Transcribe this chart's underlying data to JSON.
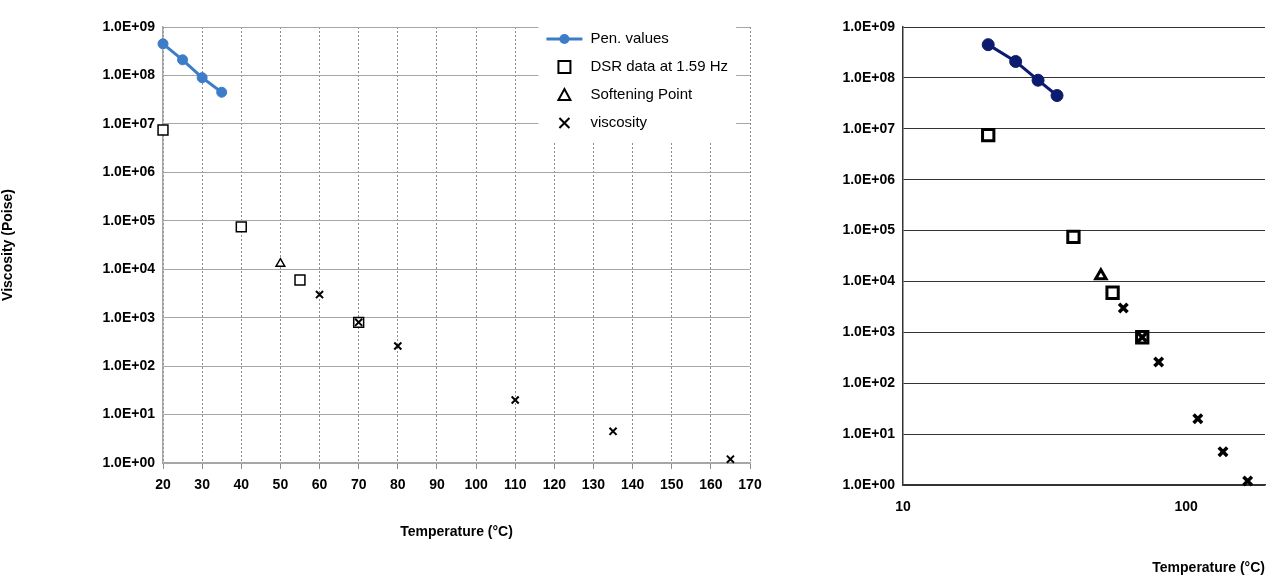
{
  "chart_data": [
    {
      "type": "scatter",
      "xlabel": "Temperature (°C)",
      "ylabel": "Viscosity (Poise)",
      "log": "y",
      "grid": true,
      "legend": "top right",
      "xlim": [
        20,
        170
      ],
      "xticks": [
        20,
        30,
        40,
        50,
        60,
        70,
        80,
        90,
        100,
        110,
        120,
        130,
        140,
        150,
        160,
        170
      ],
      "ylim": [
        1,
        1000000000
      ],
      "yticks": [
        {
          "value": 1,
          "label": "1.0E+00"
        },
        {
          "value": 10,
          "label": "1.0E+01"
        },
        {
          "value": 100,
          "label": "1.0E+02"
        },
        {
          "value": 1000,
          "label": "1.0E+03"
        },
        {
          "value": 10000,
          "label": "1.0E+04"
        },
        {
          "value": 100000,
          "label": "1.0E+05"
        },
        {
          "value": 1000000,
          "label": "1.0E+06"
        },
        {
          "value": 10000000,
          "label": "1.0E+07"
        },
        {
          "value": 100000000,
          "label": "1.0E+08"
        },
        {
          "value": 1000000000,
          "label": "1.0E+09"
        }
      ],
      "series": [
        {
          "name": "Pen. values",
          "type": "line",
          "marker": "circle",
          "color": "#3d7cc9",
          "x": [
            20,
            25,
            30,
            35
          ],
          "values": [
            450000000,
            210000000,
            90000000,
            45000000
          ]
        },
        {
          "name": "DSR data at 1.59 Hz",
          "type": "scatter",
          "marker": "square",
          "color": "#000000",
          "x": [
            20,
            40,
            55,
            70
          ],
          "values": [
            7500000,
            75000,
            6000,
            800
          ]
        },
        {
          "name": "Softening Point",
          "type": "scatter",
          "marker": "triangle",
          "color": "#000000",
          "x": [
            50
          ],
          "values": [
            13000
          ]
        },
        {
          "name": "viscosity",
          "type": "scatter",
          "marker": "cross",
          "color": "#000000",
          "x": [
            60,
            70,
            80,
            110,
            135,
            165
          ],
          "values": [
            3000,
            800,
            260,
            20,
            4.5,
            1.2
          ]
        }
      ]
    },
    {
      "type": "scatter",
      "xlabel": "Temperature (°C)",
      "log": "xy",
      "grid": "y",
      "xlim": [
        10,
        190
      ],
      "xticks": [
        10,
        100
      ],
      "ylim": [
        1,
        1000000000
      ],
      "yticks": [
        {
          "value": 1,
          "label": "1.0E+00"
        },
        {
          "value": 10,
          "label": "1.0E+01"
        },
        {
          "value": 100,
          "label": "1.0E+02"
        },
        {
          "value": 1000,
          "label": "1.0E+03"
        },
        {
          "value": 10000,
          "label": "1.0E+04"
        },
        {
          "value": 100000,
          "label": "1.0E+05"
        },
        {
          "value": 1000000,
          "label": "1.0E+06"
        },
        {
          "value": 10000000,
          "label": "1.0E+07"
        },
        {
          "value": 100000000,
          "label": "1.0E+08"
        },
        {
          "value": 1000000000,
          "label": "1.0E+09"
        }
      ],
      "series": [
        {
          "type": "line",
          "marker": "circle",
          "color": "#0d1b6e",
          "x": [
            20,
            25,
            30,
            35
          ],
          "values": [
            450000000,
            210000000,
            90000000,
            45000000
          ]
        },
        {
          "type": "scatter",
          "marker": "square",
          "color": "#000000",
          "x": [
            20,
            40,
            55,
            70
          ],
          "values": [
            7500000,
            75000,
            6000,
            800
          ]
        },
        {
          "type": "scatter",
          "marker": "triangle",
          "color": "#000000",
          "x": [
            50
          ],
          "values": [
            13000
          ]
        },
        {
          "type": "scatter",
          "marker": "cross",
          "color": "#000000",
          "x": [
            60,
            70,
            80,
            110,
            135,
            165
          ],
          "values": [
            3000,
            800,
            260,
            20,
            4.5,
            1.2
          ]
        }
      ]
    }
  ]
}
